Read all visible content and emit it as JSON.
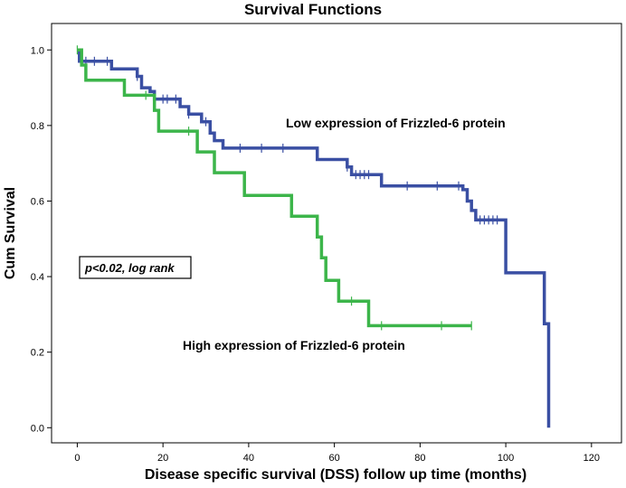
{
  "chart_data": {
    "type": "line",
    "title": "Survival Functions",
    "xlabel": "Disease specific survival (DSS) follow up time (months)",
    "ylabel": "Cum Survival",
    "xlim": [
      -6,
      127
    ],
    "ylim": [
      -0.04,
      1.07
    ],
    "xticks": [
      0,
      20,
      40,
      60,
      80,
      100,
      120
    ],
    "yticks": [
      0.0,
      0.2,
      0.4,
      0.6,
      0.8,
      1.0
    ],
    "xtick_labels": [
      "0",
      "20",
      "40",
      "60",
      "80",
      "100",
      "120"
    ],
    "ytick_labels": [
      "0.0",
      "0.2",
      "0.4",
      "0.6",
      "0.8",
      "1.0"
    ],
    "series": [
      {
        "name": "Low expression of Frizzled-6 protein",
        "color": "#3a4fa3",
        "steps": [
          [
            0,
            1.0
          ],
          [
            0.5,
            0.97
          ],
          [
            8,
            0.95
          ],
          [
            14,
            0.93
          ],
          [
            15,
            0.9
          ],
          [
            17,
            0.89
          ],
          [
            18,
            0.87
          ],
          [
            24,
            0.85
          ],
          [
            26,
            0.83
          ],
          [
            29,
            0.81
          ],
          [
            31,
            0.78
          ],
          [
            32,
            0.76
          ],
          [
            34,
            0.74
          ],
          [
            56,
            0.71
          ],
          [
            63,
            0.69
          ],
          [
            64,
            0.67
          ],
          [
            71,
            0.64
          ],
          [
            90,
            0.63
          ],
          [
            91,
            0.6
          ],
          [
            92,
            0.575
          ],
          [
            93,
            0.55
          ],
          [
            100,
            0.41
          ],
          [
            109,
            0.275
          ],
          [
            110,
            0.0
          ],
          [
            110,
            0.0
          ]
        ],
        "censor_x": [
          2,
          4,
          7,
          14,
          20,
          21,
          23,
          26,
          30,
          38,
          43,
          48,
          63,
          65,
          66,
          67,
          68,
          77,
          84,
          89,
          94,
          95,
          96,
          97,
          98
        ]
      },
      {
        "name": "High expression of Frizzled-6 protein",
        "color": "#3cb54a",
        "steps": [
          [
            0,
            1.0
          ],
          [
            1,
            0.96
          ],
          [
            2,
            0.92
          ],
          [
            11,
            0.88
          ],
          [
            18,
            0.84
          ],
          [
            19,
            0.785
          ],
          [
            28,
            0.73
          ],
          [
            32,
            0.675
          ],
          [
            39,
            0.615
          ],
          [
            50,
            0.56
          ],
          [
            56,
            0.505
          ],
          [
            57,
            0.45
          ],
          [
            58,
            0.39
          ],
          [
            61,
            0.335
          ],
          [
            68,
            0.27
          ],
          [
            92,
            0.27
          ]
        ],
        "censor_x": [
          0,
          16,
          26,
          64,
          71,
          85,
          92
        ]
      }
    ],
    "annotations": {
      "low_label": "Low expression of Frizzled-6 protein",
      "high_label": "High expression of Frizzled-6 protein",
      "pvalue": "p<0.02, log rank"
    }
  }
}
